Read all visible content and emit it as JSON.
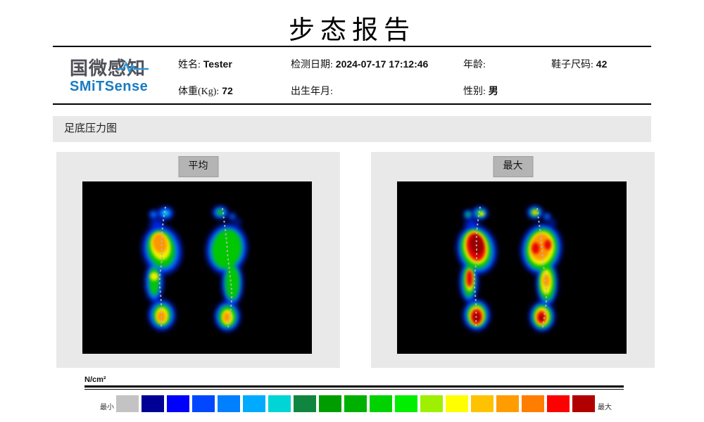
{
  "title": "步态报告",
  "logo": {
    "cn": "国微感知",
    "en": "SMiTSense",
    "cn_color": "#50505a",
    "en_color": "#187ac2",
    "wave_color": "#2a96d8"
  },
  "patient": {
    "fields": [
      {
        "label": "姓名:",
        "value": "Tester"
      },
      {
        "label": "检测日期:",
        "value": "2024-07-17 17:12:46"
      },
      {
        "label": "年龄:",
        "value": ""
      },
      {
        "label": "鞋子尺码:",
        "value": "42"
      },
      {
        "label": "体重(Kg):",
        "value": "72"
      },
      {
        "label": "出生年月:",
        "value": ""
      },
      {
        "label": "性别:",
        "value": "男"
      }
    ]
  },
  "section": {
    "title": "足底压力图"
  },
  "panels": [
    {
      "badge": "平均"
    },
    {
      "badge": "最大"
    }
  ],
  "colorbar": {
    "unit": "N/cm²",
    "min_label": "最小",
    "max_label": "最大",
    "colors": [
      "#c3c3c3",
      "#000095",
      "#0000ff",
      "#0047ff",
      "#0080ff",
      "#00abff",
      "#00d5d5",
      "#108540",
      "#009d00",
      "#00b000",
      "#00d200",
      "#00ef00",
      "#9ef000",
      "#ffff00",
      "#ffc200",
      "#ff9c00",
      "#ff7d00",
      "#ff0000",
      "#b10000"
    ]
  }
}
